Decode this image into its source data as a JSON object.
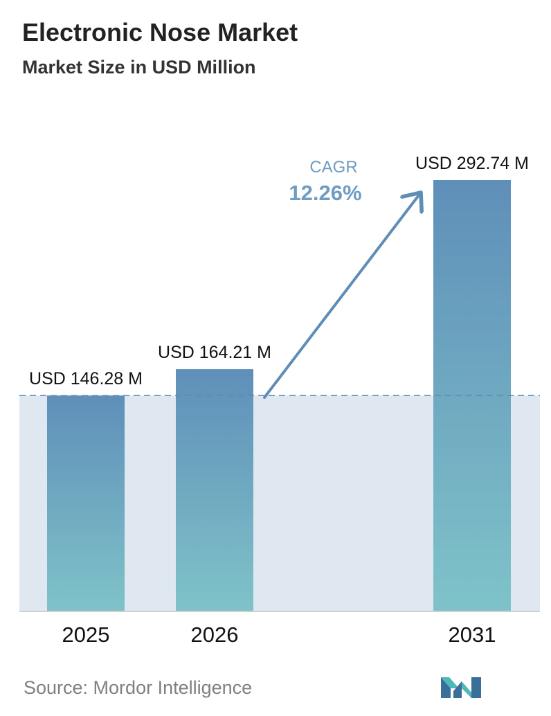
{
  "chart_data": {
    "type": "bar",
    "title": "Electronic Nose Market",
    "subtitle": "Market Size in USD Million",
    "categories": [
      "2025",
      "2026",
      "2031"
    ],
    "values": [
      146.28,
      164.21,
      292.74
    ],
    "value_labels": [
      "USD 146.28 M",
      "USD 164.21 M",
      "USD 292.74 M"
    ],
    "ylim": [
      0,
      292.74
    ],
    "grid": false,
    "legend": "none",
    "annotation": {
      "label": "CAGR",
      "value": "12.26%"
    }
  },
  "source": "Source:  Mordor Intelligence",
  "colors": {
    "bar_top": "#5f8fb9",
    "bar_bottom": "#7fc3c9",
    "band": "#dfe8f1",
    "reference_line": "#5a8db0",
    "arrow": "#5f8db5",
    "cagr_text": "#6f9cc1",
    "logo_dark": "#3a6f9a",
    "logo_light": "#4fb8b8"
  },
  "logo_icon": "mordor-intelligence-logo-icon"
}
